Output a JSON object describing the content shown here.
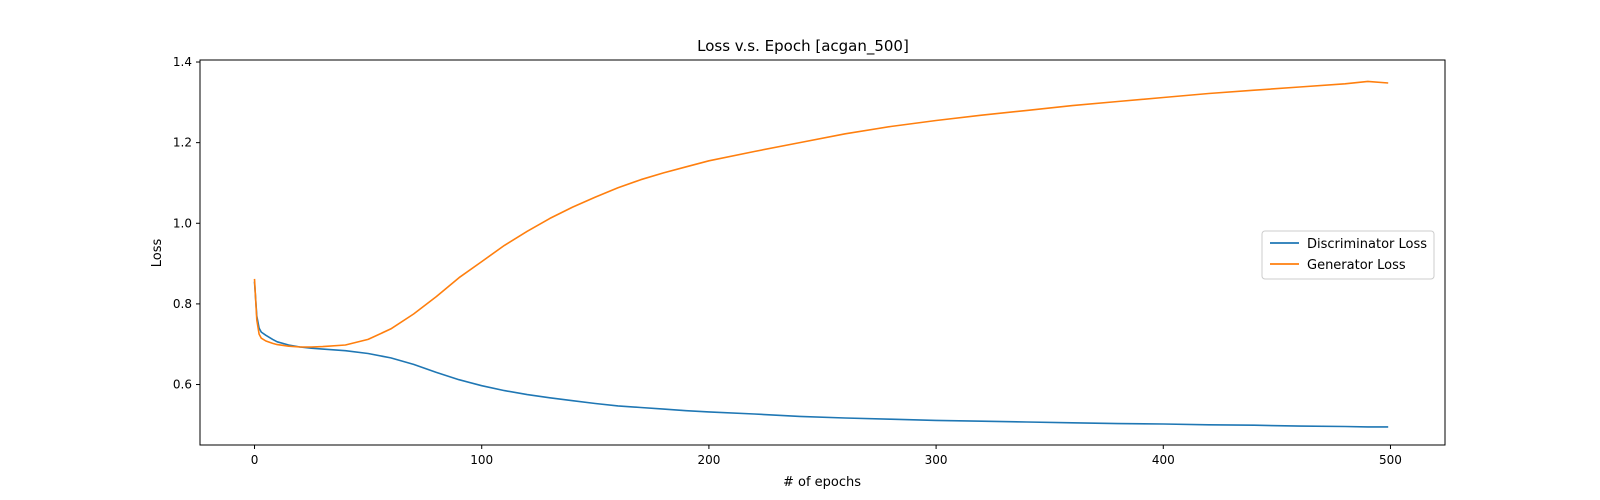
{
  "chart_data": {
    "type": "line",
    "title": "Loss v.s. Epoch [acgan_500]",
    "xlabel": "# of epochs",
    "ylabel": "Loss",
    "xlim": [
      -24,
      524
    ],
    "ylim": [
      0.45,
      1.405
    ],
    "x_ticks": [
      0,
      100,
      200,
      300,
      400,
      500
    ],
    "x_tick_labels": [
      "0",
      "100",
      "200",
      "300",
      "400",
      "500"
    ],
    "y_ticks": [
      0.6,
      0.8,
      1.0,
      1.2,
      1.4
    ],
    "y_tick_labels": [
      "0.6",
      "0.8",
      "1.0",
      "1.2",
      "1.4"
    ],
    "grid": false,
    "legend_position": "center-right",
    "x": [
      0,
      1,
      2,
      3,
      5,
      8,
      10,
      15,
      20,
      25,
      30,
      40,
      50,
      60,
      70,
      80,
      90,
      100,
      110,
      120,
      130,
      140,
      150,
      160,
      170,
      180,
      190,
      200,
      220,
      240,
      260,
      280,
      300,
      320,
      340,
      360,
      380,
      400,
      420,
      440,
      460,
      480,
      490,
      499
    ],
    "series": [
      {
        "name": "Discriminator Loss",
        "color": "#1f77b4",
        "values": [
          0.855,
          0.77,
          0.74,
          0.73,
          0.722,
          0.712,
          0.706,
          0.698,
          0.693,
          0.69,
          0.688,
          0.684,
          0.677,
          0.666,
          0.65,
          0.63,
          0.612,
          0.597,
          0.585,
          0.575,
          0.567,
          0.56,
          0.553,
          0.547,
          0.543,
          0.539,
          0.535,
          0.532,
          0.527,
          0.521,
          0.517,
          0.514,
          0.511,
          0.509,
          0.507,
          0.505,
          0.503,
          0.502,
          0.5,
          0.499,
          0.497,
          0.496,
          0.495,
          0.495
        ]
      },
      {
        "name": "Generator Loss",
        "color": "#ff7f0e",
        "values": [
          0.862,
          0.76,
          0.725,
          0.715,
          0.708,
          0.702,
          0.699,
          0.695,
          0.693,
          0.693,
          0.694,
          0.698,
          0.712,
          0.738,
          0.775,
          0.818,
          0.865,
          0.905,
          0.945,
          0.98,
          1.012,
          1.04,
          1.065,
          1.088,
          1.108,
          1.125,
          1.14,
          1.155,
          1.178,
          1.2,
          1.222,
          1.24,
          1.255,
          1.268,
          1.28,
          1.292,
          1.302,
          1.312,
          1.322,
          1.33,
          1.338,
          1.346,
          1.352,
          1.348
        ]
      }
    ]
  }
}
